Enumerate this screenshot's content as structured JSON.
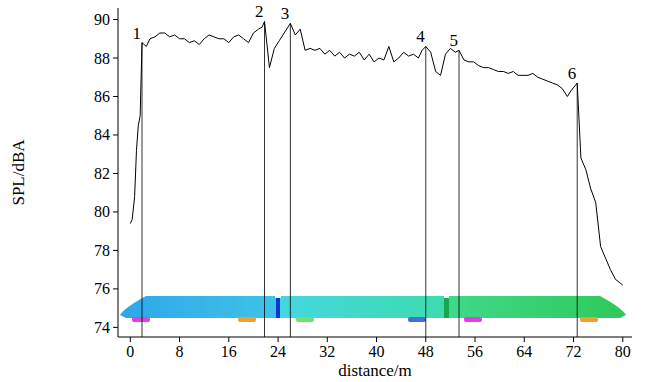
{
  "chart_data": {
    "type": "line",
    "x_label": "distance/m",
    "y_label": "SPL/dBA",
    "color": "#000000",
    "xlim": [
      -2,
      81.5
    ],
    "ylim": [
      73.5,
      90.6
    ],
    "xticks": [
      0,
      8,
      16,
      24,
      32,
      40,
      48,
      56,
      64,
      72,
      80
    ],
    "yticks": [
      74,
      76,
      78,
      80,
      82,
      84,
      86,
      88,
      90
    ],
    "grid": false,
    "x": [
      0,
      0.3,
      0.7,
      1.0,
      1.3,
      1.6,
      1.9,
      2.6,
      3.2,
      4.0,
      4.8,
      5.6,
      6.4,
      7.2,
      8.0,
      8.8,
      9.6,
      10.4,
      11.2,
      12.0,
      12.8,
      13.6,
      14.4,
      15.2,
      16.0,
      16.8,
      17.6,
      18.4,
      19.2,
      20.0,
      20.8,
      21.4,
      21.8,
      22.6,
      23.4,
      24.2,
      25.0,
      26.0,
      26.8,
      27.6,
      28.4,
      29.2,
      30.0,
      30.8,
      31.6,
      32.4,
      33.2,
      34.0,
      34.8,
      35.6,
      36.4,
      37.2,
      38.0,
      38.8,
      39.6,
      40.4,
      41.2,
      42.0,
      42.8,
      43.6,
      44.4,
      45.2,
      46.0,
      46.8,
      47.4,
      48.0,
      48.8,
      49.6,
      50.4,
      51.2,
      52.0,
      52.8,
      53.4,
      54.2,
      55.0,
      55.8,
      56.6,
      57.4,
      58.2,
      59.0,
      59.8,
      60.6,
      61.4,
      62.2,
      63.0,
      63.8,
      64.6,
      65.4,
      66.2,
      67.0,
      67.8,
      68.6,
      69.4,
      70.2,
      71.0,
      71.6,
      72.6,
      73.2,
      74.0,
      74.8,
      75.6,
      76.4,
      77.2,
      78.0,
      78.8,
      79.6,
      80.0
    ],
    "values": [
      79.4,
      79.6,
      80.8,
      83.2,
      84.5,
      85.0,
      88.8,
      88.6,
      89.0,
      89.1,
      89.3,
      89.3,
      89.1,
      89.2,
      89.0,
      89.0,
      88.8,
      88.9,
      88.7,
      89.0,
      89.2,
      89.1,
      89.0,
      89.0,
      88.8,
      89.1,
      89.2,
      89.0,
      88.8,
      89.3,
      89.5,
      89.6,
      89.9,
      87.5,
      88.5,
      88.9,
      89.3,
      89.8,
      89.2,
      89.5,
      88.4,
      88.5,
      88.4,
      88.5,
      88.2,
      88.4,
      88.1,
      88.3,
      88.0,
      88.2,
      88.1,
      88.3,
      87.9,
      88.2,
      87.8,
      88.0,
      87.9,
      88.6,
      87.8,
      88.0,
      88.3,
      88.1,
      88.2,
      88.0,
      88.4,
      88.6,
      88.3,
      87.3,
      87.1,
      88.2,
      88.5,
      88.3,
      88.4,
      87.9,
      87.8,
      87.8,
      87.6,
      87.5,
      87.5,
      87.4,
      87.3,
      87.3,
      87.2,
      87.3,
      87.1,
      87.1,
      87.1,
      87.2,
      87.0,
      86.9,
      86.8,
      86.7,
      86.6,
      86.4,
      86.0,
      86.3,
      86.7,
      82.8,
      82.2,
      81.2,
      80.5,
      78.2,
      77.6,
      77.0,
      76.5,
      76.3,
      76.2
    ],
    "annotations": [
      {
        "label": "1",
        "x": 1.9,
        "y": 88.8
      },
      {
        "label": "2",
        "x": 21.8,
        "y": 89.9
      },
      {
        "label": "3",
        "x": 26.0,
        "y": 89.8
      },
      {
        "label": "4",
        "x": 48.0,
        "y": 88.6
      },
      {
        "label": "5",
        "x": 53.4,
        "y": 88.4
      },
      {
        "label": "6",
        "x": 72.6,
        "y": 86.7
      }
    ]
  }
}
